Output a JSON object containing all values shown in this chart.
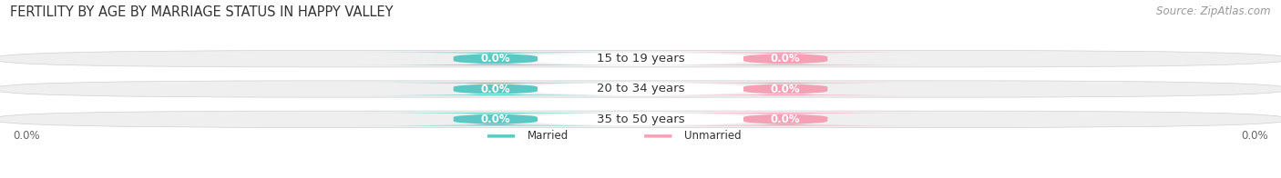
{
  "title": "FERTILITY BY AGE BY MARRIAGE STATUS IN HAPPY VALLEY",
  "source": "Source: ZipAtlas.com",
  "age_groups": [
    "15 to 19 years",
    "20 to 34 years",
    "35 to 50 years"
  ],
  "married_values": [
    0.0,
    0.0,
    0.0
  ],
  "unmarried_values": [
    0.0,
    0.0,
    0.0
  ],
  "married_color": "#5bc8c4",
  "unmarried_color": "#f4a0b5",
  "bar_bg_color": "#efefef",
  "bar_border_color": "#d0d0d0",
  "center_label_bg": "#ffffff",
  "title_fontsize": 10.5,
  "source_fontsize": 8.5,
  "label_fontsize": 8.5,
  "age_label_fontsize": 9.5,
  "value_label_fontsize": 8.5,
  "background_color": "#ffffff",
  "axis_label_left": "0.0%",
  "axis_label_right": "0.0%",
  "legend_married": "Married",
  "legend_unmarried": "Unmarried"
}
